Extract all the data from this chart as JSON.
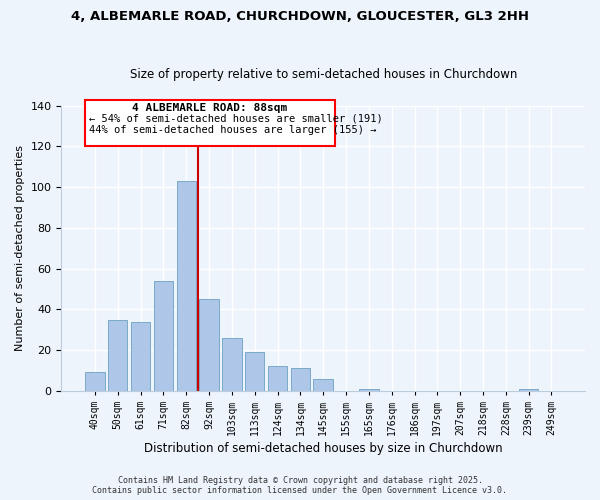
{
  "title": "4, ALBEMARLE ROAD, CHURCHDOWN, GLOUCESTER, GL3 2HH",
  "subtitle": "Size of property relative to semi-detached houses in Churchdown",
  "xlabel": "Distribution of semi-detached houses by size in Churchdown",
  "ylabel": "Number of semi-detached properties",
  "bar_labels": [
    "40sqm",
    "50sqm",
    "61sqm",
    "71sqm",
    "82sqm",
    "92sqm",
    "103sqm",
    "113sqm",
    "124sqm",
    "134sqm",
    "145sqm",
    "155sqm",
    "165sqm",
    "176sqm",
    "186sqm",
    "197sqm",
    "207sqm",
    "218sqm",
    "228sqm",
    "239sqm",
    "249sqm"
  ],
  "bar_values": [
    9,
    35,
    34,
    54,
    103,
    45,
    26,
    19,
    12,
    11,
    6,
    0,
    1,
    0,
    0,
    0,
    0,
    0,
    0,
    1,
    0
  ],
  "bar_color": "#aec6e8",
  "bar_edge_color": "#7aaac8",
  "vline_color": "#cc0000",
  "annotation_title": "4 ALBEMARLE ROAD: 88sqm",
  "annotation_line1": "← 54% of semi-detached houses are smaller (191)",
  "annotation_line2": "44% of semi-detached houses are larger (155) →",
  "ylim": [
    0,
    140
  ],
  "yticks": [
    0,
    20,
    40,
    60,
    80,
    100,
    120,
    140
  ],
  "bg_color": "#eef4fc",
  "grid_color": "#ffffff",
  "footer1": "Contains HM Land Registry data © Crown copyright and database right 2025.",
  "footer2": "Contains public sector information licensed under the Open Government Licence v3.0."
}
